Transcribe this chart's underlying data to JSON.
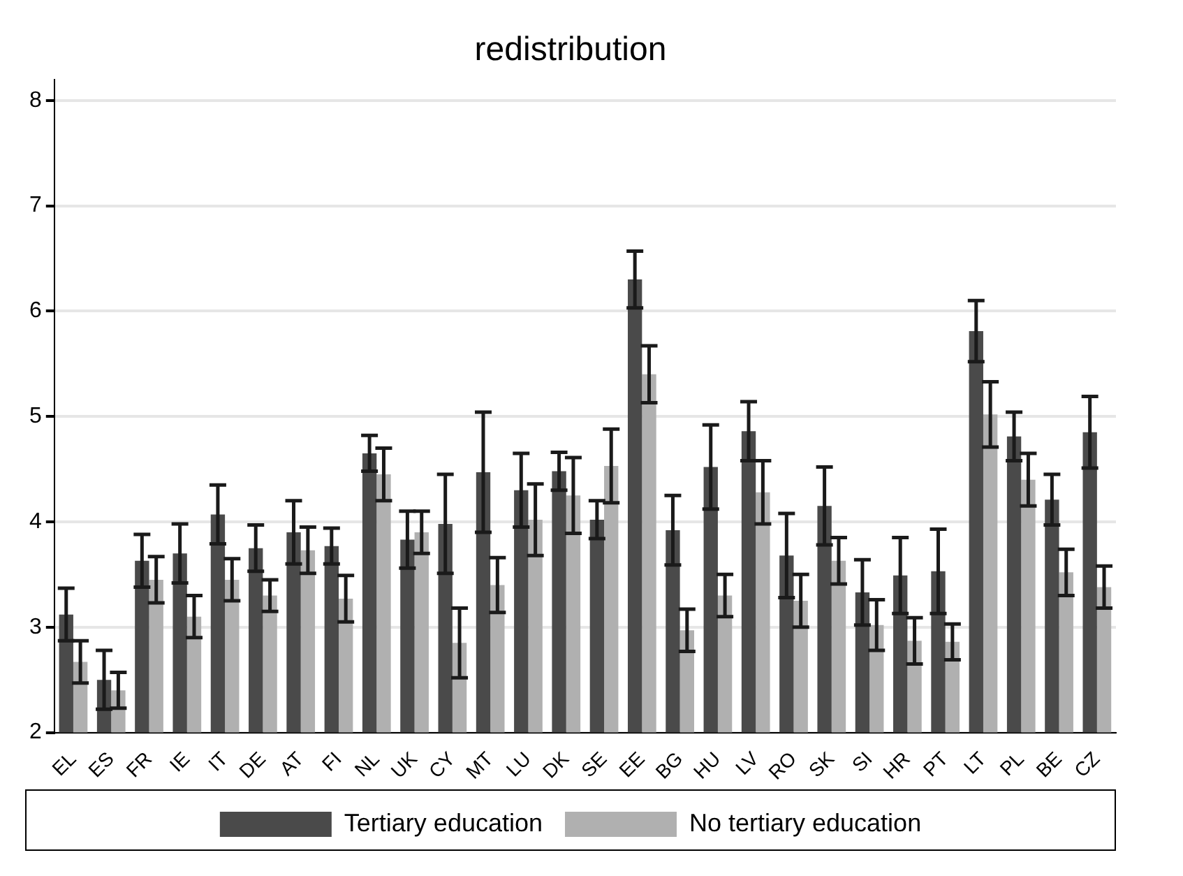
{
  "chart_data": {
    "type": "bar",
    "title": "redistribution",
    "categories": [
      "EL",
      "ES",
      "FR",
      "IE",
      "IT",
      "DE",
      "AT",
      "FI",
      "NL",
      "UK",
      "CY",
      "MT",
      "LU",
      "DK",
      "SE",
      "EE",
      "BG",
      "HU",
      "LV",
      "RO",
      "SK",
      "SI",
      "HR",
      "PT",
      "LT",
      "PL",
      "BE",
      "CZ"
    ],
    "series": [
      {
        "name": "Tertiary education",
        "color": "#4a4a4a",
        "values": [
          3.12,
          2.5,
          3.63,
          3.7,
          4.07,
          3.75,
          3.9,
          3.77,
          4.65,
          3.83,
          3.98,
          4.47,
          4.3,
          4.48,
          4.02,
          6.3,
          3.92,
          4.52,
          4.86,
          3.68,
          4.15,
          3.33,
          3.49,
          3.53,
          5.81,
          4.81,
          4.21,
          4.85
        ],
        "errors": [
          0.25,
          0.28,
          0.25,
          0.28,
          0.28,
          0.22,
          0.3,
          0.17,
          0.17,
          0.27,
          0.47,
          0.57,
          0.35,
          0.18,
          0.18,
          0.27,
          0.33,
          0.4,
          0.28,
          0.4,
          0.37,
          0.31,
          0.36,
          0.4,
          0.29,
          0.23,
          0.24,
          0.34
        ]
      },
      {
        "name": "No tertiary education",
        "color": "#b0b0b0",
        "values": [
          2.67,
          2.4,
          3.45,
          3.1,
          3.45,
          3.3,
          3.73,
          3.27,
          4.45,
          3.9,
          2.85,
          3.4,
          4.02,
          4.25,
          4.53,
          5.4,
          2.97,
          3.3,
          4.28,
          3.25,
          3.63,
          3.02,
          2.87,
          2.86,
          5.02,
          4.4,
          3.52,
          3.38
        ],
        "errors": [
          0.2,
          0.17,
          0.22,
          0.2,
          0.2,
          0.15,
          0.22,
          0.22,
          0.25,
          0.2,
          0.33,
          0.26,
          0.34,
          0.36,
          0.35,
          0.27,
          0.2,
          0.2,
          0.3,
          0.25,
          0.22,
          0.24,
          0.22,
          0.17,
          0.31,
          0.25,
          0.22,
          0.2
        ]
      }
    ],
    "ylim": [
      2,
      8.2
    ],
    "yticks": [
      2,
      3,
      4,
      5,
      6,
      7,
      8
    ],
    "grid": "y",
    "legend": "bottom"
  }
}
